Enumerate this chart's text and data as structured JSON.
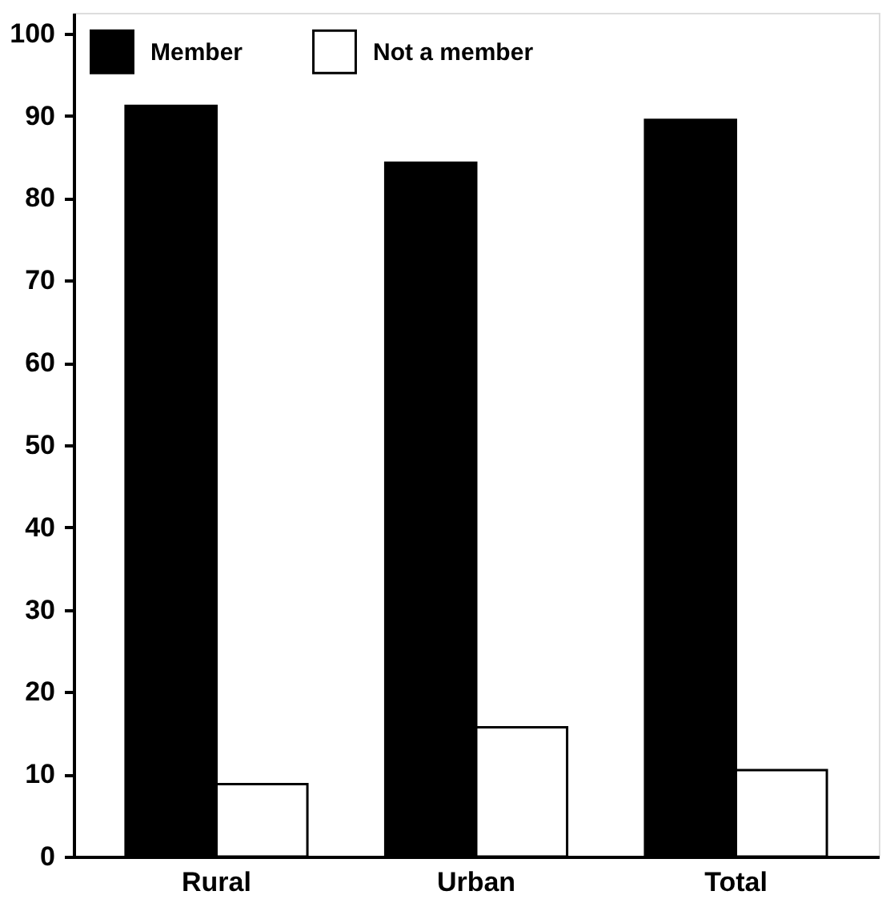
{
  "chart_data": {
    "type": "bar",
    "categories": [
      "Rural",
      "Urban",
      "Total"
    ],
    "series": [
      {
        "name": "Member",
        "color": "#000000",
        "values": [
          91.2,
          84.3,
          89.5
        ]
      },
      {
        "name": "Not a member",
        "color": "#ffffff",
        "values": [
          8.8,
          15.7,
          10.5
        ]
      }
    ],
    "ylim": [
      0,
      102.5
    ],
    "yticks": [
      0,
      10,
      20,
      30,
      40,
      50,
      60,
      70,
      80,
      90,
      100
    ],
    "grid": false,
    "legend": "top left"
  }
}
